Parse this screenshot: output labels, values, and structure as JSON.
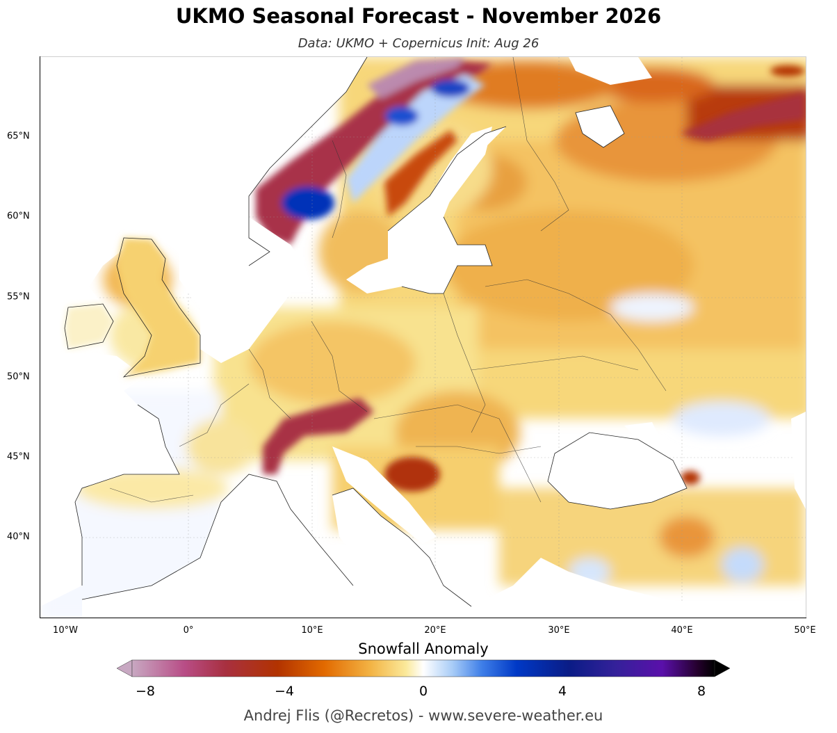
{
  "header": {
    "title": "UKMO Seasonal Forecast - November 2026",
    "subtitle": "Data: UKMO + Copernicus   Init: Aug 26"
  },
  "map": {
    "projection": "equirectangular",
    "lon_range": [
      -12,
      50
    ],
    "lat_range": [
      35,
      70
    ],
    "lat_ticks": [
      "65°N",
      "60°N",
      "55°N",
      "50°N",
      "45°N",
      "40°N"
    ],
    "lon_ticks": [
      "10°W",
      "0°",
      "10°E",
      "20°E",
      "30°E",
      "40°E",
      "50°E"
    ],
    "gridlines": true,
    "anomalies": [
      {
        "region": "Norwegian coast",
        "value": -7
      },
      {
        "region": "Scandinavian mountains (south)",
        "value": 3.5
      },
      {
        "region": "Scandinavian mountains (north)",
        "value": 3
      },
      {
        "region": "Swedish Baltic coast",
        "value": -4.5
      },
      {
        "region": "Alps",
        "value": -6
      },
      {
        "region": "Dinaric Alps / Bosnia",
        "value": -5
      },
      {
        "region": "Northern Russia coast",
        "value": -5
      },
      {
        "region": "Caucasus",
        "value": -4
      },
      {
        "region": "Eastern Europe",
        "value": -2
      },
      {
        "region": "Iberia / France",
        "value": 0.3
      }
    ]
  },
  "colorbar": {
    "title": "Snowfall Anomaly",
    "min": -8,
    "max": 8,
    "ticks": [
      "−8",
      "−4",
      "0",
      "4",
      "8"
    ],
    "stops": [
      "#c8a8c2",
      "#b84d86",
      "#a83040",
      "#b23300",
      "#e26a00",
      "#f3b445",
      "#fbe99a",
      "#ffffff",
      "#a8ccf7",
      "#3f7fe8",
      "#0039c6",
      "#0a1c86",
      "#34219a",
      "#5a10aa",
      "#25002e",
      "#000000"
    ]
  },
  "credit": "Andrej Flis (@Recretos) - www.severe-weather.eu"
}
